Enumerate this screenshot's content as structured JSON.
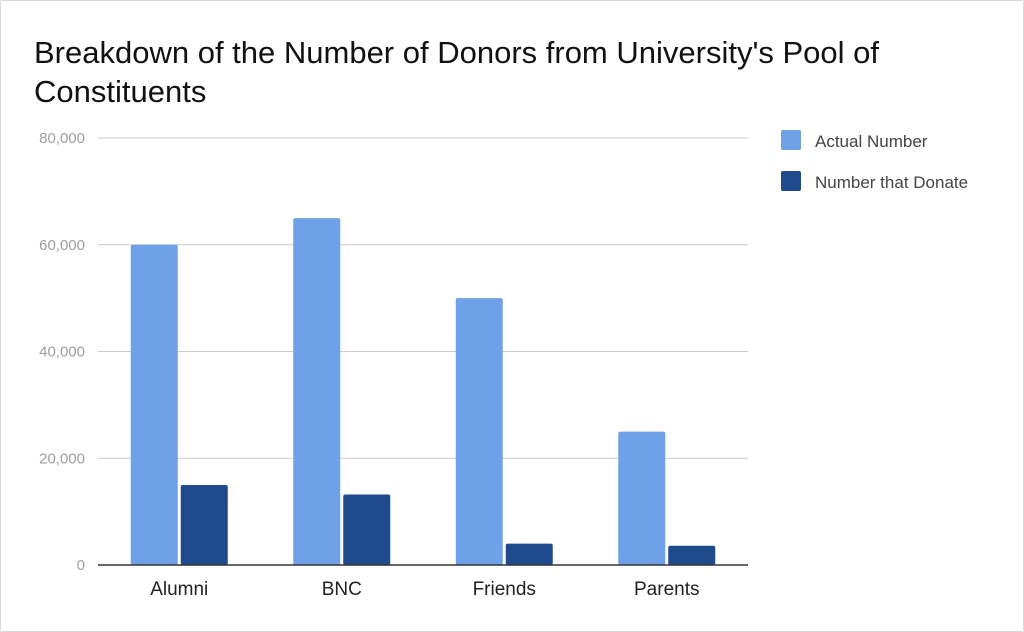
{
  "chart_data": {
    "type": "bar",
    "title": "Breakdown of the Number of Donors from University's Pool of Constituents",
    "categories": [
      "Alumni",
      "BNC",
      "Friends",
      "Parents"
    ],
    "series": [
      {
        "name": "Actual Number",
        "color": "#6fa1e8",
        "values": [
          60000,
          65000,
          50000,
          25000
        ]
      },
      {
        "name": "Number that Donate",
        "color": "#1f4a8c",
        "values": [
          15000,
          13200,
          4000,
          3600
        ]
      }
    ],
    "ylim": [
      0,
      80000
    ],
    "yticks": [
      "0",
      "20,000",
      "40,000",
      "60,000",
      "80,000"
    ],
    "xlabel": "",
    "ylabel": "",
    "grid": true,
    "legend": "right"
  }
}
